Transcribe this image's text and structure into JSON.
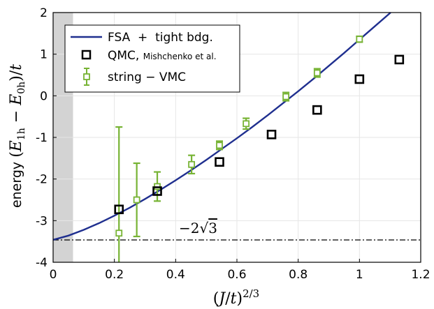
{
  "chart_data": {
    "type": "scatter",
    "xlabel": "(J/t)^{2/3}",
    "ylabel": "energy (E_{1h} − E_{0h})/t",
    "xlim": [
      0,
      1.2
    ],
    "ylim": [
      -4,
      2
    ],
    "xticks": [
      0,
      0.2,
      0.4,
      0.6,
      0.8,
      1,
      1.2
    ],
    "xtick_labels": [
      "0",
      "0.2",
      "0.4",
      "0.6",
      "0.8",
      "1",
      "1.2"
    ],
    "yticks": [
      -4,
      -3,
      -2,
      -1,
      0,
      1,
      2
    ],
    "ytick_labels": [
      "-4",
      "-3",
      "-2",
      "-1",
      "0",
      "1",
      "2"
    ],
    "grid": true,
    "legend_position": "top-left",
    "shaded_region": {
      "x0": 0,
      "x1": 0.065,
      "color": "#d3d3d3"
    },
    "reference_line": {
      "y": -3.4641,
      "label": "−2√3",
      "style": "dash-dot"
    },
    "series": [
      {
        "name": "FSA + tight bdg.",
        "kind": "line",
        "color": "#1f2f8f",
        "x": [
          0,
          0.05,
          0.1,
          0.15,
          0.2,
          0.25,
          0.3,
          0.35,
          0.4,
          0.45,
          0.5,
          0.55,
          0.6,
          0.65,
          0.7,
          0.75,
          0.8,
          0.85,
          0.9,
          0.95,
          1.0,
          1.05,
          1.1,
          1.13
        ],
        "y": [
          -3.46,
          -3.36,
          -3.22,
          -3.06,
          -2.88,
          -2.69,
          -2.48,
          -2.26,
          -2.03,
          -1.79,
          -1.54,
          -1.28,
          -1.02,
          -0.75,
          -0.47,
          -0.18,
          0.11,
          0.41,
          0.72,
          1.03,
          1.35,
          1.67,
          1.99,
          2.2
        ]
      },
      {
        "name": "QMC, Mishchenko et al.",
        "kind": "scatter",
        "marker": "square",
        "color": "#000000",
        "x": [
          0.215,
          0.34,
          0.543,
          0.713,
          0.862,
          1.0,
          1.13
        ],
        "y": [
          -2.73,
          -2.29,
          -1.59,
          -0.93,
          -0.34,
          0.4,
          0.87
        ]
      },
      {
        "name": "string − VMC",
        "kind": "errorbar",
        "marker": "square",
        "color": "#77b334",
        "x": [
          0.215,
          0.273,
          0.34,
          0.452,
          0.543,
          0.63,
          0.76,
          0.862,
          1.0
        ],
        "y": [
          -3.3,
          -2.5,
          -2.18,
          -1.65,
          -1.19,
          -0.67,
          -0.02,
          0.55,
          1.36
        ],
        "err": [
          2.55,
          0.88,
          0.35,
          0.22,
          0.1,
          0.13,
          0.1,
          0.1,
          0.07
        ]
      }
    ]
  },
  "legend": {
    "fsa_label": "FSA  +  tight bdg.",
    "qmc_label": "QMC, ",
    "qmc_ref": "Mishchenko et al.",
    "vmc_label": "string − VMC"
  },
  "annotation": {
    "text_prefix": "−2",
    "text_root": "3"
  }
}
